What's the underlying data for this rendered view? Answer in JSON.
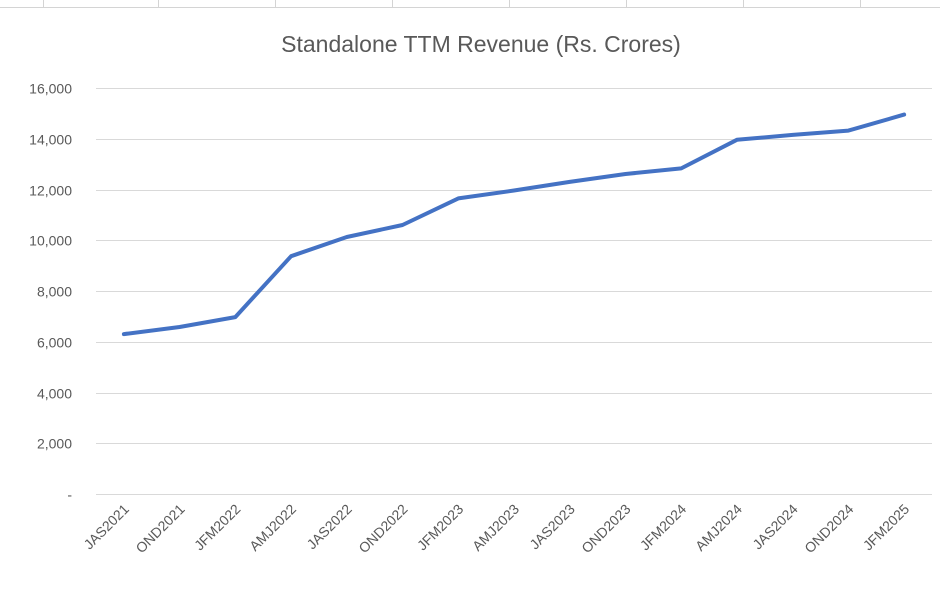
{
  "chart_data": {
    "type": "line",
    "title": "Standalone TTM Revenue (Rs. Crores)",
    "xlabel": "",
    "ylabel": "",
    "categories": [
      "JAS2021",
      "OND2021",
      "JFM2022",
      "AMJ2022",
      "JAS2022",
      "OND2022",
      "JFM2023",
      "AMJ2023",
      "JAS2023",
      "OND2023",
      "JFM2024",
      "AMJ2024",
      "JAS2024",
      "OND2024",
      "JFM2025"
    ],
    "series": [
      {
        "name": "Standalone TTM Revenue",
        "color": "#4472c4",
        "values": [
          6300,
          6580,
          6970,
          9370,
          10130,
          10600,
          11650,
          11960,
          12300,
          12610,
          12830,
          13960,
          14150,
          14320,
          14950
        ]
      }
    ],
    "ylim": [
      0,
      16000
    ],
    "yticks": [
      0,
      2000,
      4000,
      6000,
      8000,
      10000,
      12000,
      14000,
      16000
    ],
    "ytick_labels": [
      "-",
      "2,000",
      "4,000",
      "6,000",
      "8,000",
      "10,000",
      "12,000",
      "14,000",
      "16,000"
    ],
    "grid": true,
    "legend": "none"
  }
}
